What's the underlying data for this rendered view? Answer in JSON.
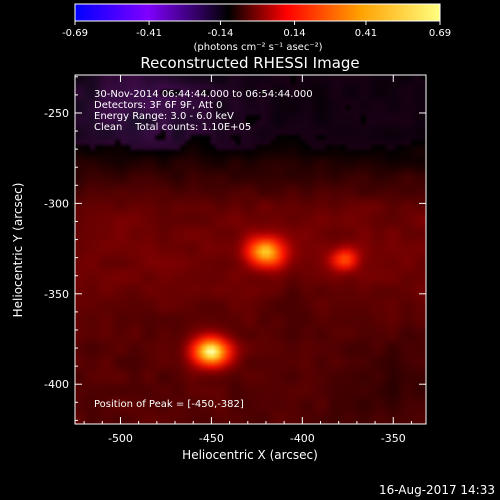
{
  "chart_data": {
    "type": "heatmap",
    "title": "Reconstructed RHESSI Image",
    "xlabel": "Heliocentric X (arcsec)",
    "ylabel": "Heliocentric Y (arcsec)",
    "xlim": [
      -525,
      -332
    ],
    "ylim": [
      -422,
      -229
    ],
    "x_ticks": [
      -500,
      -450,
      -400,
      -350
    ],
    "x_tick_labels": [
      "-500",
      "-450",
      "-400",
      "-350"
    ],
    "y_ticks": [
      -250,
      -300,
      -350,
      -400
    ],
    "y_tick_labels": [
      "-250",
      "-300",
      "-350",
      "-400"
    ],
    "colorbar": {
      "range": [
        -0.69,
        0.69
      ],
      "tick_values": [
        -0.69,
        -0.41,
        -0.14,
        0.14,
        0.41,
        0.69
      ],
      "tick_labels": [
        "-0.69",
        "-0.41",
        "-0.14",
        "0.14",
        "0.41",
        "0.69"
      ],
      "units_label": "(photons cm⁻² s⁻¹ asec⁻²)",
      "colormap": [
        "#0000ff",
        "#8000ff",
        "#000000",
        "#ff0000",
        "#ffa000",
        "#ffff80"
      ]
    },
    "annotations": {
      "time_range": "30-Nov-2014 06:44:44.000 to 06:54:44.000",
      "detectors": "Detectors: 3F 6F 9F, Att 0",
      "energy_range": "Energy Range: 3.0 - 6.0 keV",
      "method": "Clean    Total counts: 1.10E+05",
      "peak_position": "Position of Peak = [-450,-382]"
    },
    "sources": [
      {
        "x": -450,
        "y": -382,
        "peak": 0.69
      },
      {
        "x": -420,
        "y": -327,
        "peak": 0.55
      },
      {
        "x": -377,
        "y": -331,
        "peak": 0.38
      }
    ],
    "background_level": 0.14,
    "dark_region": {
      "x": -488,
      "y": -248,
      "level": -0.12
    }
  },
  "footer_date": "16-Aug-2017 14:33"
}
